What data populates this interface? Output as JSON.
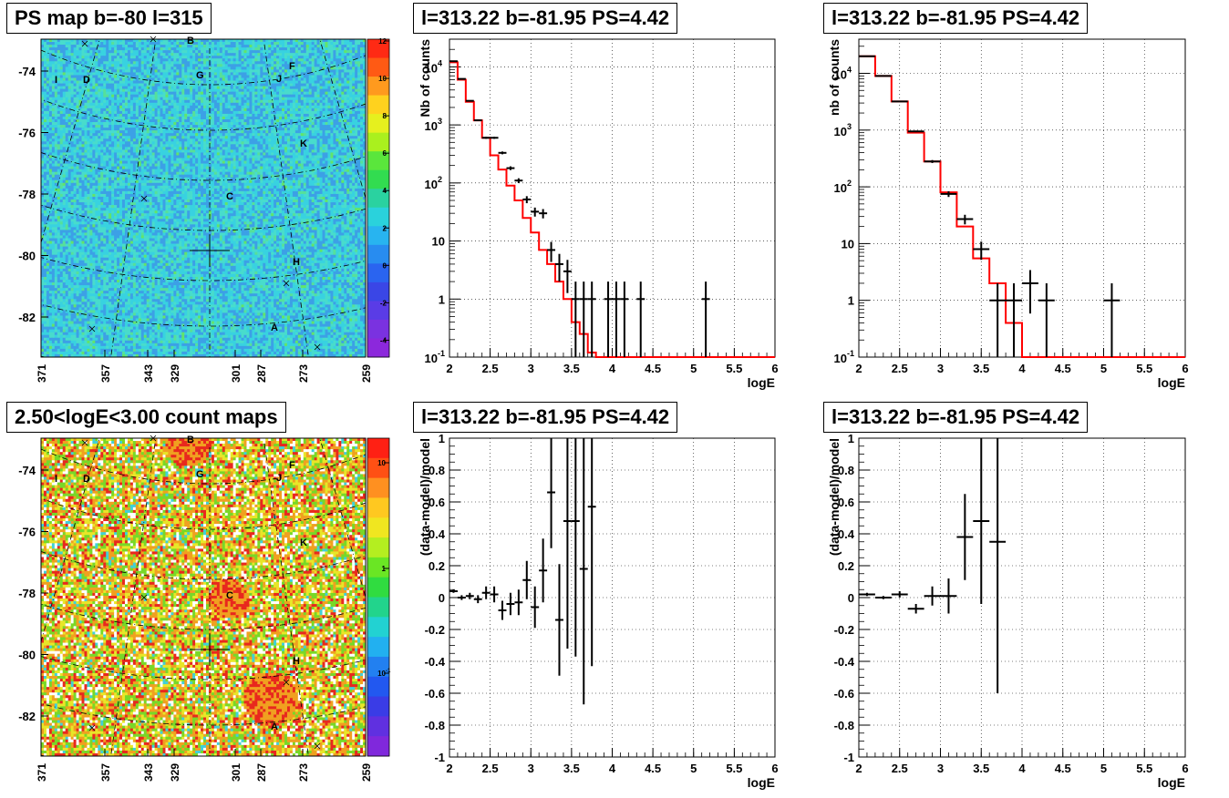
{
  "pads": {
    "map_top_title": "PS map b=-80 l=315",
    "map_bottom_title": "2.50<logE<3.00 count maps",
    "spec_title_1": "l=313.22 b=-81.95 PS=4.42",
    "spec_title_2": "l=313.22 b=-81.95 PS=4.42",
    "ratio_title_1": "l=313.22 b=-81.95 PS=4.42",
    "ratio_title_2": "l=313.22 b=-81.95 PS=4.42"
  },
  "colors": {
    "data": "#000000",
    "model": "#ff0000"
  },
  "chart_data": [
    {
      "type": "heatmap",
      "name": "PS map",
      "y_ticks": [
        "-74",
        "-76",
        "-78",
        "-80",
        "-82"
      ],
      "x_ticks": [
        "371",
        "357",
        "343",
        "329",
        "301",
        "287",
        "273",
        "259"
      ],
      "colorbar_ticks": [
        "-4",
        "-2",
        "0",
        "2",
        "4",
        "6",
        "8",
        "10",
        "12"
      ],
      "colorbar_range": [
        -5,
        12
      ],
      "source_labels": [
        "B",
        "I",
        "D",
        "G",
        "F",
        "J",
        "K",
        "C",
        "H",
        "A"
      ]
    },
    {
      "type": "heatmap",
      "name": "count map",
      "log_scale": true,
      "y_ticks": [
        "-74",
        "-76",
        "-78",
        "-80",
        "-82"
      ],
      "x_ticks": [
        "371",
        "357",
        "343",
        "329",
        "301",
        "287",
        "273",
        "259"
      ],
      "colorbar_ticks": [
        "10",
        "1",
        "10-1"
      ],
      "source_labels": [
        "B",
        "I",
        "D",
        "G",
        "F",
        "J",
        "K",
        "C",
        "H",
        "A"
      ]
    },
    {
      "type": "line",
      "xlabel": "logE",
      "ylabel": "Nb of counts",
      "xlim": [
        2,
        6
      ],
      "ylim": [
        0.1,
        30000
      ],
      "log_y": true,
      "grid": true,
      "x_ticks": [
        "2",
        "2.5",
        "3",
        "3.5",
        "4",
        "4.5",
        "5",
        "5.5",
        "6"
      ],
      "y_ticks": [
        "10^-1",
        "1",
        "10",
        "10^2",
        "10^3",
        "10^4"
      ],
      "model_bin_width": 0.1,
      "model": [
        12000,
        6000,
        2500,
        1200,
        600,
        300,
        170,
        90,
        50,
        25,
        14,
        7,
        4,
        2,
        1,
        0.4,
        0.25,
        0.12,
        0.1,
        0.1,
        0.1,
        0.1,
        0.1,
        0.1,
        0.1,
        0.1,
        0.1,
        0.1,
        0.1,
        0.1,
        0.1,
        0.1,
        0.1,
        0.1,
        0.1,
        0.1,
        0.1,
        0.1,
        0.1,
        0.1
      ],
      "data_x": [
        2.05,
        2.15,
        2.25,
        2.35,
        2.45,
        2.55,
        2.65,
        2.75,
        2.85,
        2.95,
        3.05,
        3.15,
        3.25,
        3.35,
        3.45,
        3.55,
        3.65,
        3.75,
        3.95,
        4.05,
        4.15,
        4.35,
        5.15
      ],
      "data_y": [
        12500,
        6200,
        2600,
        1200,
        600,
        600,
        330,
        180,
        110,
        52,
        32,
        30,
        7,
        4,
        3,
        1,
        1,
        1,
        1,
        1,
        1,
        1,
        1
      ]
    },
    {
      "type": "line",
      "xlabel": "logE",
      "ylabel": "nb of counts",
      "xlim": [
        2,
        6
      ],
      "ylim": [
        0.1,
        40000
      ],
      "log_y": true,
      "grid": true,
      "x_ticks": [
        "2",
        "2.5",
        "3",
        "3.5",
        "4",
        "4.5",
        "5",
        "5.5",
        "6"
      ],
      "y_ticks": [
        "10^-1",
        "1",
        "10",
        "10^2",
        "10^3",
        "10^4"
      ],
      "model_bin_width": 0.2,
      "model": [
        20000,
        9000,
        3200,
        900,
        280,
        80,
        20,
        5.5,
        2,
        0.4,
        0.1,
        0.1,
        0.1,
        0.1,
        0.1,
        0.1,
        0.1,
        0.1,
        0.1,
        0.1
      ],
      "data_x": [
        2.1,
        2.3,
        2.5,
        2.7,
        2.9,
        3.1,
        3.3,
        3.5,
        3.7,
        3.9,
        4.1,
        4.3,
        5.1
      ],
      "data_y": [
        20000,
        9000,
        3200,
        950,
        280,
        75,
        27,
        8,
        1,
        1,
        2,
        1,
        1
      ]
    },
    {
      "type": "scatter",
      "xlabel": "logE",
      "ylabel": "(data-model)/model",
      "xlim": [
        2,
        6
      ],
      "ylim": [
        -1,
        1
      ],
      "grid": true,
      "x_ticks": [
        "2",
        "2.5",
        "3",
        "3.5",
        "4",
        "4.5",
        "5",
        "5.5",
        "6"
      ],
      "y_ticks": [
        "-1",
        "-0.8",
        "-0.6",
        "-0.4",
        "-0.2",
        "0",
        "0.2",
        "0.4",
        "0.6",
        "0.8",
        "1"
      ],
      "bin_width": 0.1,
      "x": [
        2.05,
        2.15,
        2.25,
        2.35,
        2.45,
        2.55,
        2.65,
        2.75,
        2.85,
        2.95,
        3.05,
        3.15,
        3.25,
        3.35,
        3.45,
        3.55,
        3.65,
        3.75
      ],
      "y": [
        0.04,
        0.0,
        0.01,
        -0.01,
        0.03,
        0.02,
        -0.08,
        -0.04,
        -0.03,
        0.11,
        -0.06,
        0.17,
        0.66,
        -0.14,
        0.48,
        0.48,
        0.18,
        0.57
      ],
      "err": [
        0.01,
        0.015,
        0.02,
        0.025,
        0.04,
        0.05,
        0.06,
        0.07,
        0.08,
        0.12,
        0.13,
        0.2,
        0.35,
        0.35,
        0.8,
        0.85,
        0.85,
        1.0
      ]
    },
    {
      "type": "scatter",
      "xlabel": "logE",
      "ylabel": "(data-model)/model",
      "xlim": [
        2,
        6
      ],
      "ylim": [
        -1,
        1
      ],
      "grid": true,
      "x_ticks": [
        "2",
        "2.5",
        "3",
        "3.5",
        "4",
        "4.5",
        "5",
        "5.5",
        "6"
      ],
      "y_ticks": [
        "-1",
        "-0.8",
        "-0.6",
        "-0.4",
        "-0.2",
        "0",
        "0.2",
        "0.4",
        "0.6",
        "0.8",
        "1"
      ],
      "bin_width": 0.2,
      "x": [
        2.1,
        2.3,
        2.5,
        2.7,
        2.9,
        3.1,
        3.3,
        3.5,
        3.7
      ],
      "y": [
        0.02,
        0.0,
        0.02,
        -0.07,
        0.01,
        0.01,
        0.38,
        0.48,
        0.35
      ],
      "err": [
        0.01,
        0.01,
        0.02,
        0.03,
        0.06,
        0.11,
        0.27,
        0.52,
        0.95
      ]
    }
  ]
}
